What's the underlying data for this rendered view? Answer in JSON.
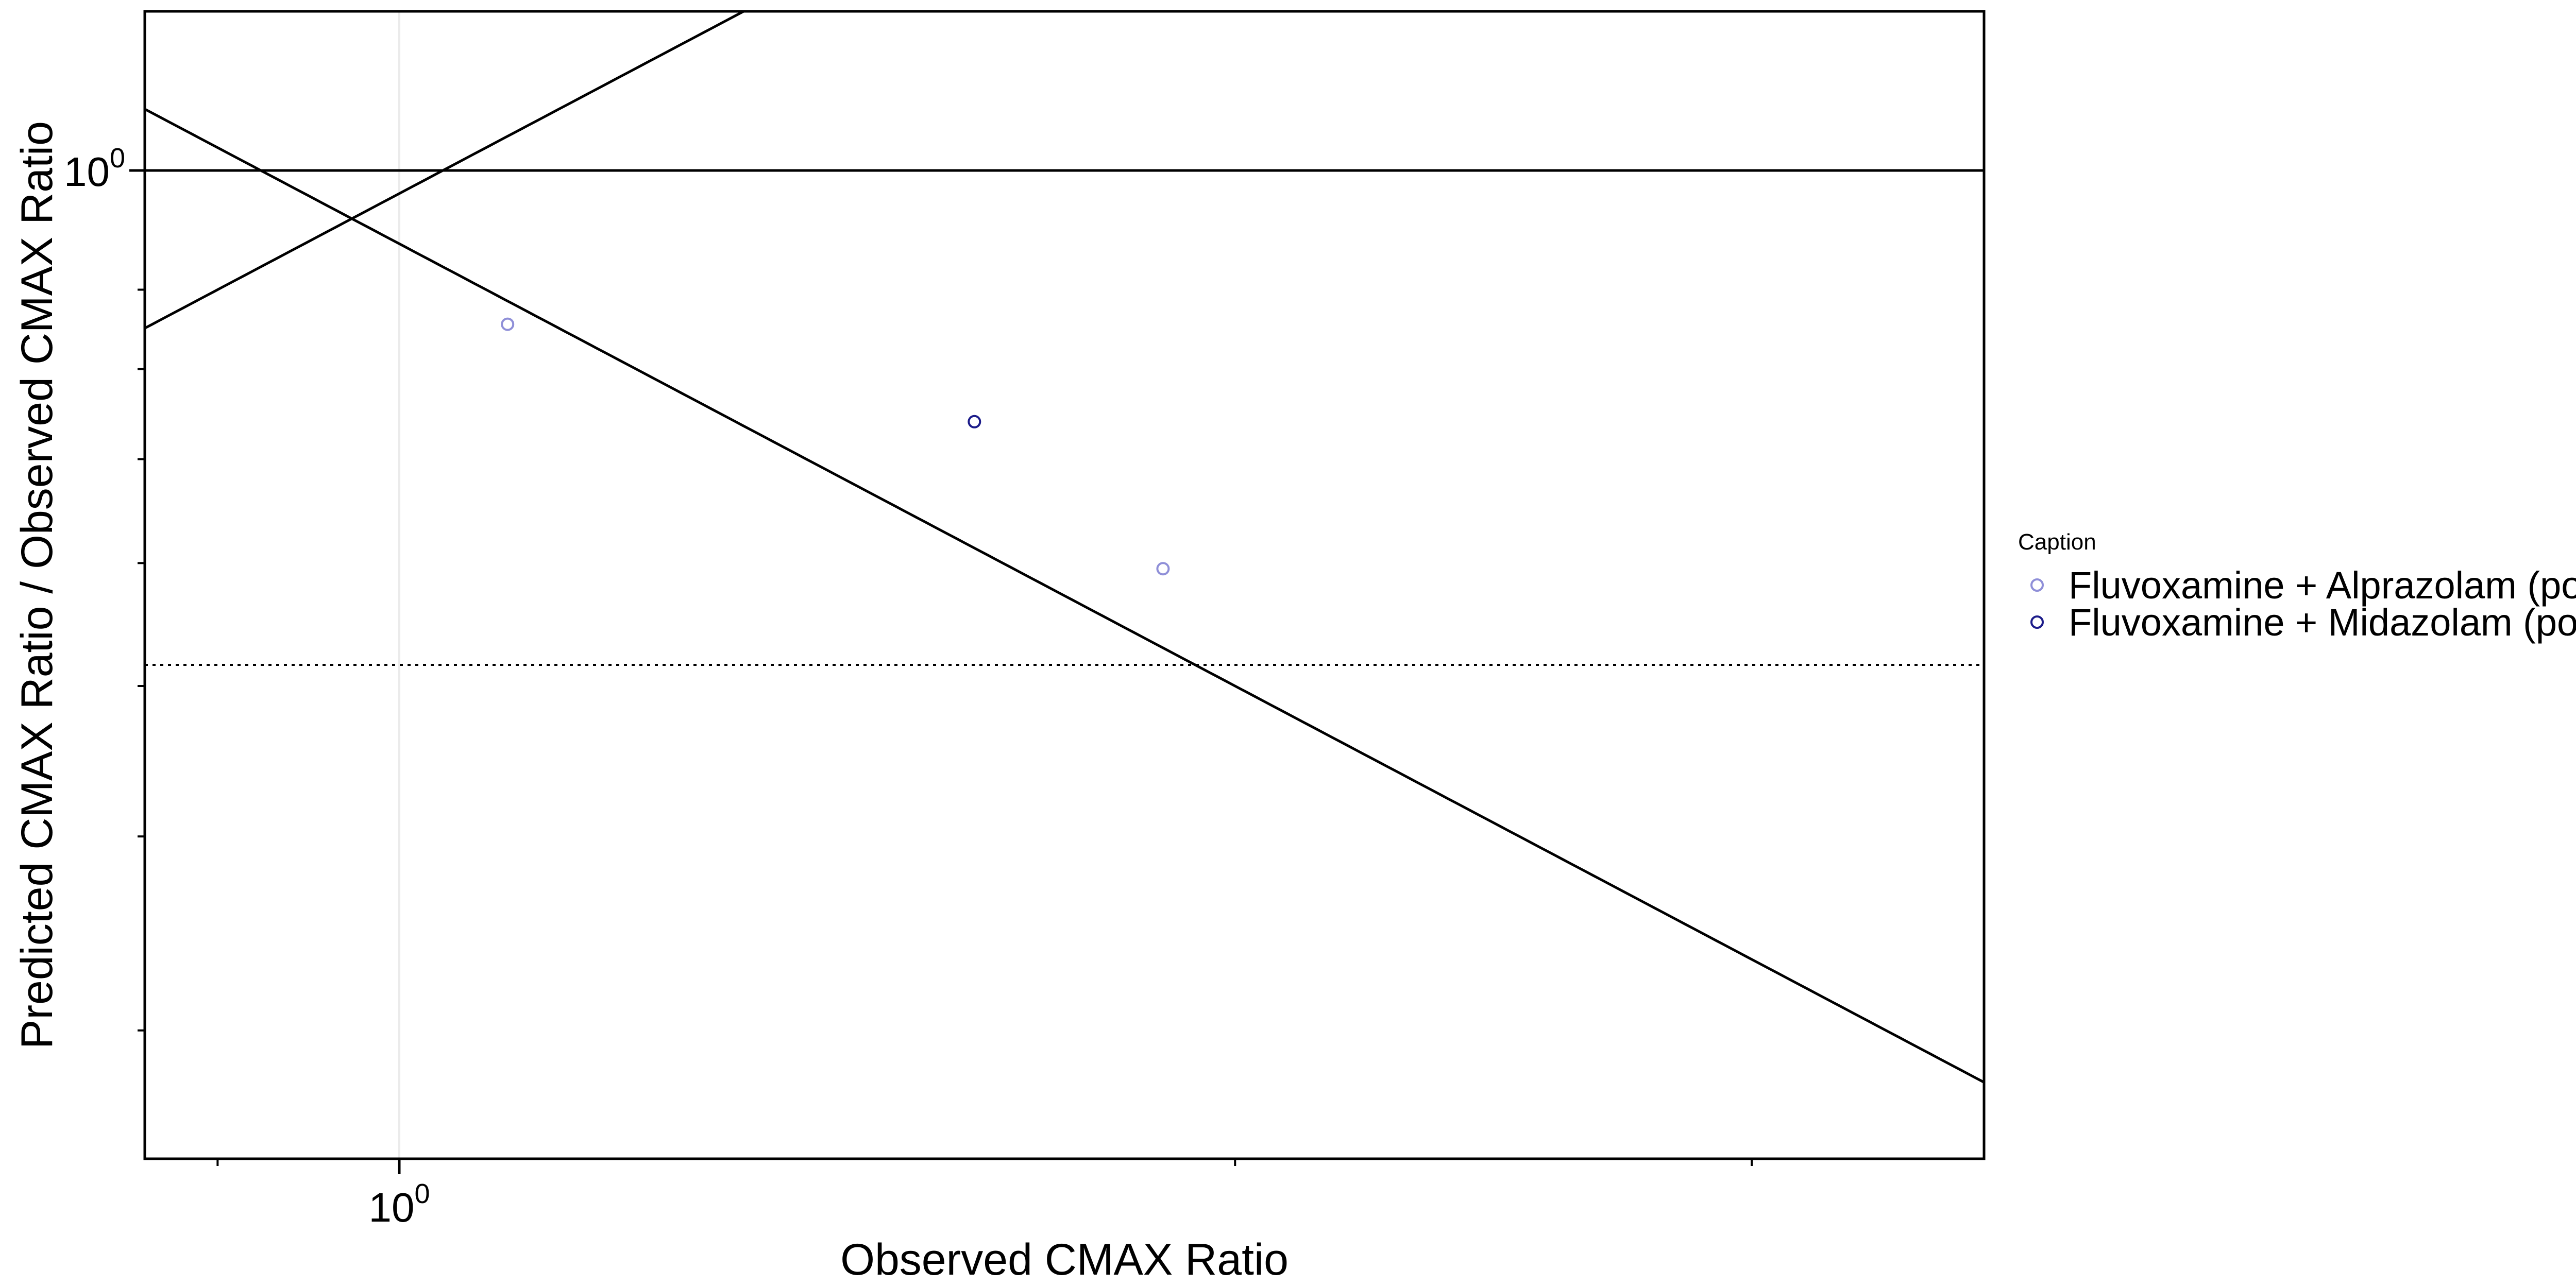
{
  "chart_data": {
    "type": "scatter",
    "title": "",
    "xlabel": "Observed CMAX Ratio",
    "ylabel": "Predicted CMAX Ratio / Observed CMAX Ratio",
    "x_scale": "log",
    "y_scale": "log",
    "xlim": [
      0.85,
      3.6
    ],
    "ylim": [
      0.248,
      1.36
    ],
    "x_ticks": [
      {
        "value": 1,
        "label": "10",
        "exp": "0"
      }
    ],
    "y_ticks": [
      {
        "value": 1,
        "label": "10",
        "exp": "0"
      }
    ],
    "x_minor_ticks": [
      0.9,
      2,
      3
    ],
    "y_minor_ticks": [
      0.9,
      0.8,
      0.7,
      0.6,
      0.5,
      0.4,
      0.3
    ],
    "reference_lines": [
      {
        "kind": "horizontal",
        "y": 1,
        "style": "solid"
      },
      {
        "kind": "horizontal",
        "y": 0.5,
        "style": "dotted"
      },
      {
        "kind": "curve",
        "formula": "y = x",
        "style": "solid"
      },
      {
        "kind": "curve",
        "formula": "y = 1/x",
        "style": "solid"
      }
    ],
    "grid": false,
    "legend": {
      "title": "Caption",
      "position": "right"
    },
    "series": [
      {
        "name": "Fluvoxamine + Alprazolam (po)",
        "color": "#8f8fd8",
        "points": [
          [
            1.13,
            0.855
          ],
          [
            1.89,
            0.595
          ]
        ]
      },
      {
        "name": "Fluvoxamine + Midazolam (po)",
        "color": "#1c1c8a",
        "points": [
          [
            1.63,
            0.74
          ]
        ]
      }
    ]
  }
}
